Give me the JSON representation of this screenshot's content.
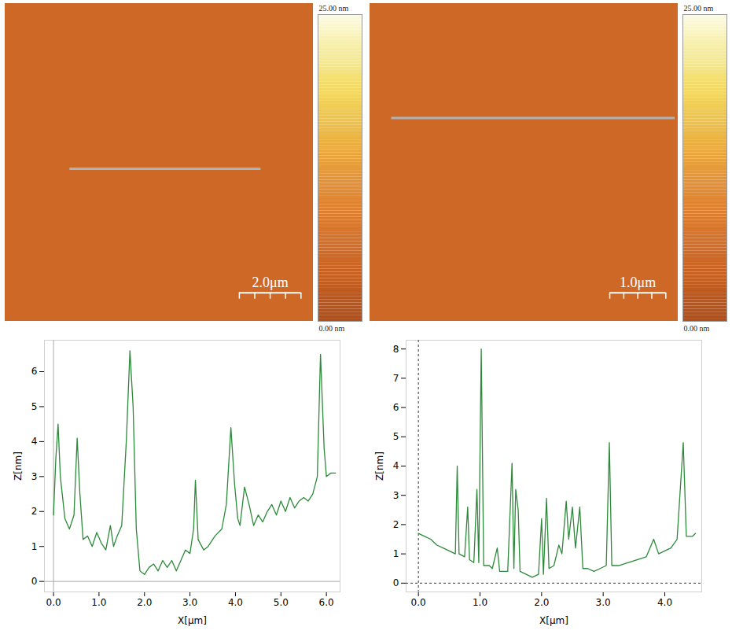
{
  "chart_data": [
    {
      "type": "image",
      "xlim": [
        0,
        10
      ],
      "background": 5,
      "scale_bar": {
        "value": 2,
        "label": "2.0μm"
      },
      "colorbar": {
        "colors": [
          "#b04e1a",
          "#d66d28",
          "#e8973a",
          "#f2df4c",
          "#fbfbe8"
        ],
        "range": [
          0,
          25
        ],
        "ticks": [
          {
            "value": 25,
            "label": "25.00 nm"
          },
          {
            "value": 0,
            "label": "0.00 nm"
          }
        ]
      }
    },
    {
      "type": "image",
      "xlim": [
        0,
        5.5
      ],
      "background": 5,
      "scale_bar": {
        "value": 1,
        "label": "1.0μm"
      },
      "colorbar": {
        "colors": [
          "#b04e1a",
          "#d66d28",
          "#e8973a",
          "#f2df4c",
          "#fbfbe8"
        ],
        "range": [
          0,
          25
        ],
        "ticks": [
          {
            "value": 25,
            "label": "25.00 nm"
          },
          {
            "value": 0,
            "label": "0.00 nm"
          }
        ]
      }
    },
    {
      "type": "line",
      "xlabel": "X[μm]",
      "ylabel": "Z[nm]",
      "color": "#2d8a3a",
      "xlim": [
        -0.2,
        6.3
      ],
      "ylim": [
        -0.3,
        6.9
      ],
      "xticks": [
        0,
        1,
        2,
        3,
        4,
        5,
        6
      ],
      "yticks": [
        0,
        1,
        2,
        3,
        4,
        5,
        6
      ],
      "x": [
        0.0,
        0.05,
        0.1,
        0.15,
        0.25,
        0.35,
        0.45,
        0.52,
        0.58,
        0.65,
        0.75,
        0.85,
        0.95,
        1.05,
        1.15,
        1.25,
        1.32,
        1.4,
        1.5,
        1.6,
        1.68,
        1.75,
        1.82,
        1.9,
        2.0,
        2.1,
        2.2,
        2.3,
        2.4,
        2.5,
        2.6,
        2.7,
        2.8,
        2.9,
        3.0,
        3.08,
        3.12,
        3.18,
        3.3,
        3.4,
        3.55,
        3.7,
        3.8,
        3.9,
        3.98,
        4.05,
        4.1,
        4.2,
        4.3,
        4.4,
        4.5,
        4.6,
        4.7,
        4.8,
        4.9,
        5.0,
        5.1,
        5.2,
        5.3,
        5.4,
        5.5,
        5.6,
        5.7,
        5.8,
        5.87,
        5.95,
        6.0,
        6.1,
        6.2
      ],
      "values": [
        1.9,
        3.5,
        4.5,
        3.0,
        1.8,
        1.5,
        1.9,
        4.1,
        2.5,
        1.2,
        1.3,
        1.0,
        1.4,
        1.1,
        0.9,
        1.6,
        1.0,
        1.3,
        1.6,
        4.0,
        6.6,
        5.0,
        1.5,
        0.3,
        0.2,
        0.4,
        0.5,
        0.3,
        0.6,
        0.4,
        0.6,
        0.3,
        0.6,
        0.9,
        0.8,
        1.5,
        2.9,
        1.2,
        0.9,
        1.0,
        1.3,
        1.5,
        2.2,
        4.4,
        2.8,
        1.8,
        1.6,
        2.7,
        2.2,
        1.6,
        1.9,
        1.7,
        2.0,
        2.2,
        1.9,
        2.3,
        2.0,
        2.4,
        2.1,
        2.3,
        2.4,
        2.3,
        2.5,
        3.0,
        6.5,
        3.8,
        3.0,
        3.1,
        3.1
      ]
    },
    {
      "type": "line",
      "xlabel": "X[μm]",
      "ylabel": "Z[nm]",
      "color": "#2d8a3a",
      "xlim": [
        -0.2,
        4.6
      ],
      "ylim": [
        -0.3,
        8.3
      ],
      "xticks": [
        0,
        1,
        2,
        3,
        4
      ],
      "yticks": [
        0,
        1,
        2,
        3,
        4,
        5,
        6,
        7,
        8
      ],
      "x": [
        0.0,
        0.1,
        0.2,
        0.3,
        0.4,
        0.5,
        0.6,
        0.63,
        0.66,
        0.75,
        0.8,
        0.83,
        0.9,
        0.95,
        0.98,
        1.02,
        1.06,
        1.15,
        1.2,
        1.28,
        1.32,
        1.45,
        1.52,
        1.55,
        1.58,
        1.62,
        1.65,
        1.75,
        1.85,
        1.95,
        2.0,
        2.03,
        2.08,
        2.12,
        2.2,
        2.28,
        2.33,
        2.4,
        2.44,
        2.5,
        2.55,
        2.62,
        2.67,
        2.75,
        2.85,
        2.95,
        3.05,
        3.1,
        3.14,
        3.25,
        3.4,
        3.55,
        3.7,
        3.82,
        3.9,
        4.0,
        4.1,
        4.2,
        4.3,
        4.35,
        4.45,
        4.5
      ],
      "values": [
        1.7,
        1.6,
        1.5,
        1.3,
        1.2,
        1.1,
        1.0,
        4.0,
        1.0,
        0.9,
        2.6,
        0.8,
        0.7,
        3.2,
        0.7,
        8.0,
        0.6,
        0.6,
        0.5,
        1.2,
        0.4,
        0.4,
        4.1,
        0.5,
        3.2,
        2.5,
        0.4,
        0.3,
        0.2,
        0.3,
        2.2,
        0.3,
        2.9,
        0.5,
        0.6,
        1.3,
        1.0,
        2.8,
        1.5,
        2.6,
        1.2,
        2.6,
        0.5,
        0.5,
        0.4,
        0.5,
        0.6,
        4.8,
        0.6,
        0.6,
        0.7,
        0.8,
        0.9,
        1.5,
        1.0,
        1.1,
        1.2,
        1.5,
        4.8,
        1.6,
        1.6,
        1.7
      ]
    }
  ]
}
